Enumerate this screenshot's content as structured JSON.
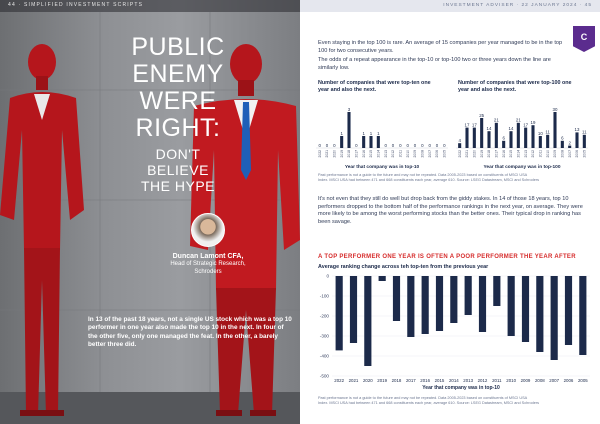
{
  "left_page": {
    "running_header": "44 · SIMPLIFIED INVESTMENT SCRIPTS",
    "headline_lines": [
      "PUBLIC",
      "ENEMY",
      "WERE",
      "RIGHT:"
    ],
    "subhead_lines": [
      "DON'T",
      "BELIEVE",
      "THE HYPE"
    ],
    "author_name": "Duncan Lamont CFA,",
    "author_role_1": "Head of Strategic Research,",
    "author_role_2": "Schroders",
    "intro": "In 13 of the past 18 years, not a single US stock which was a top 10 performer in one year also made the top 10 in the next. In four of the other five, only one managed the feat. In the other, a barely better three did."
  },
  "right_page": {
    "running_header": "INVESTMENT ADVISER · 22 JANUARY 2024 · 45",
    "logo_letter": "C",
    "para1": "Even staying in the top 100 is rare. An average of 15 companies per year managed to be in the top 100 for two consecutive years.",
    "para2": "The odds of a repeat appearance in the top-10 or top-100 two or three years down the line are similarly low.",
    "para3": "It's not even that they still do well but drop back from the giddy stakes. In 14 of those 18 years, top 10 performers dropped to the bottom half of the performance rankings in the next year, on average. They were more likely to be among the worst performing stocks than the better ones. Their typical drop in ranking has been savage.",
    "note1a": "Past performance is not a guide to the future and may not be repeated. Data 2005-2023 based on constituents of MSCI USA",
    "note1b": "Index. MSCI USA had between 471 and 668 constituents each year, average 610. Source: LSEG Datastream, MSCI and Schroders",
    "note2a": "Past performance is not a guide to the future and may not be repeated. Data 2005-2023 based on constituents of MSCI USA",
    "note2b": "Index. MSCI USA had between 471 and 668 constituents each year, average 610. Source: LSEG Datastream, MSCI and Schroders",
    "red_heading": "A TOP PERFORMER ONE YEAR IS OFTEN A POOR PERFORMER THE YEAR AFTER"
  },
  "colors": {
    "navy": "#1c2a4a",
    "red": "#d62b2b",
    "suit_red": "#b5161c",
    "purple": "#5b2c8e"
  },
  "chart_data": [
    {
      "type": "bar",
      "title": "Number of companies that were top-ten one year and also the next.",
      "xlabel": "Year that company was in top-10",
      "categories": [
        "2022",
        "2021",
        "2020",
        "2019",
        "2018",
        "2017",
        "2016",
        "2015",
        "2014",
        "2013",
        "2012",
        "2011",
        "2010",
        "2009",
        "2008",
        "2007",
        "2006",
        "2005"
      ],
      "values": [
        0,
        0,
        0,
        1,
        3,
        0,
        1,
        1,
        1,
        0,
        0,
        0,
        0,
        0,
        0,
        0,
        0,
        0
      ]
    },
    {
      "type": "bar",
      "title": "Number of companies that were top-100 one year and also the next.",
      "xlabel": "Year that company was in top-100",
      "categories": [
        "2022",
        "2021",
        "2020",
        "2019",
        "2018",
        "2017",
        "2016",
        "2015",
        "2014",
        "2013",
        "2012",
        "2011",
        "2010",
        "2009",
        "2008",
        "2007",
        "2006",
        "2005"
      ],
      "values": [
        4,
        17,
        17,
        25,
        14,
        21,
        6,
        14,
        21,
        17,
        19,
        10,
        11,
        30,
        6,
        2,
        13,
        11
      ]
    },
    {
      "type": "bar",
      "title": "Average ranking change across teh top-ten from the previous year",
      "xlabel": "Year that company was in top-10",
      "categories": [
        "2022",
        "2021",
        "2020",
        "2019",
        "2018",
        "2017",
        "2016",
        "2015",
        "2014",
        "2013",
        "2012",
        "2011",
        "2010",
        "2009",
        "2008",
        "2007",
        "2006",
        "2005"
      ],
      "values": [
        -372,
        -335,
        -450,
        -25,
        -225,
        -305,
        -290,
        -275,
        -235,
        -195,
        -280,
        -150,
        -300,
        -330,
        -380,
        -420,
        -345,
        -395
      ],
      "ylim": [
        -500,
        0
      ],
      "yticks": [
        0,
        -100,
        -200,
        -300,
        -400,
        -500
      ]
    }
  ]
}
